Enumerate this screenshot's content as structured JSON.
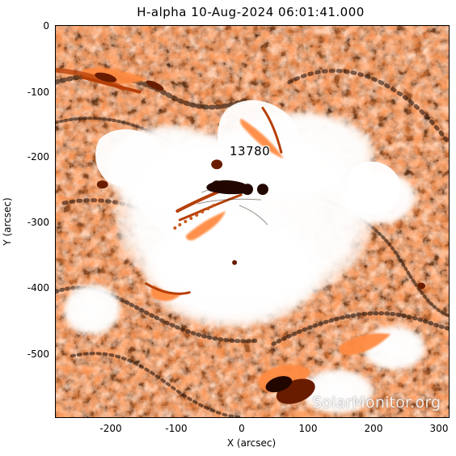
{
  "figure": {
    "title": "H-alpha 10-Aug-2024 06:01:41.000",
    "region_label": "13780",
    "watermark": "SolarMonitor.org",
    "x_axis_label": "X (arcsec)",
    "y_axis_label": "Y (arcsec)",
    "x_ticks": [
      "-200",
      "-100",
      "0",
      "100",
      "200",
      "300"
    ],
    "y_ticks": [
      "0",
      "-100",
      "-200",
      "-300",
      "-400",
      "-500"
    ]
  },
  "palette": {
    "orange": "#ff8a3d",
    "dark": "#7a2500",
    "black": "#000000",
    "white": "#ffffff"
  }
}
